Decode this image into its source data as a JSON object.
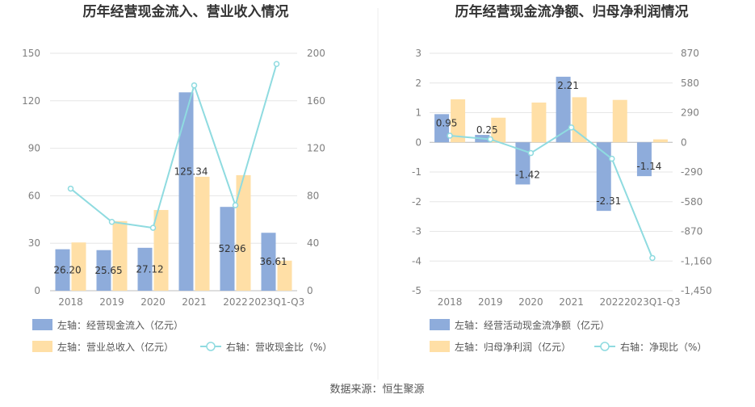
{
  "source_text": "数据来源：恒生聚源",
  "colors": {
    "blue_bar": "#8eacdb",
    "orange_bar": "#ffdfa6",
    "line": "#8fdbe0",
    "grid": "#e6e6e6",
    "axis": "#bdbdbd"
  },
  "chart_data": [
    {
      "type": "bar",
      "title": "历年经营现金流入、营业收入情况",
      "categories": [
        "2018",
        "2019",
        "2020",
        "2021",
        "2022",
        "2023Q1-Q3"
      ],
      "left_axis": {
        "ticks": [
          "0",
          "30",
          "60",
          "90",
          "120",
          "150"
        ],
        "ylim": [
          0,
          150
        ]
      },
      "right_axis": {
        "ticks": [
          "0",
          "40",
          "80",
          "120",
          "160",
          "200"
        ],
        "ylim": [
          0,
          200
        ]
      },
      "series": [
        {
          "name": "左轴：经营现金流入（亿元）",
          "axis": "left",
          "kind": "bar",
          "color": "#8eacdb",
          "values": [
            26.2,
            25.65,
            27.12,
            125.34,
            52.96,
            36.61
          ],
          "labels": [
            "26.20",
            "25.65",
            "27.12",
            "125.34",
            "52.96",
            "36.61"
          ]
        },
        {
          "name": "左轴：营业总收入（亿元）",
          "axis": "left",
          "kind": "bar",
          "color": "#ffdfa6",
          "values": [
            30.5,
            44,
            51,
            72,
            73,
            19
          ]
        },
        {
          "name": "右轴：营收现金比（%）",
          "axis": "right",
          "kind": "line",
          "color": "#8fdbe0",
          "values": [
            86,
            58,
            53,
            173,
            72,
            191
          ]
        }
      ],
      "grid": true,
      "legend": "bottom-left"
    },
    {
      "type": "bar",
      "title": "历年经营现金流净额、归母净利润情况",
      "categories": [
        "2018",
        "2019",
        "2020",
        "2021",
        "2022",
        "2023Q1-Q3"
      ],
      "left_axis": {
        "ticks": [
          "-5",
          "-4",
          "-3",
          "-2",
          "-1",
          "0",
          "1",
          "2",
          "3"
        ],
        "ylim": [
          -5,
          3
        ]
      },
      "right_axis": {
        "ticks": [
          "-1,450",
          "-1,160",
          "-870",
          "-580",
          "-290",
          "0",
          "290",
          "580",
          "870"
        ],
        "ylim": [
          -1450,
          870
        ]
      },
      "series": [
        {
          "name": "左轴：经营活动现金流净额（亿元）",
          "axis": "left",
          "kind": "bar",
          "color": "#8eacdb",
          "values": [
            0.95,
            0.25,
            -1.42,
            2.21,
            -2.31,
            -1.14
          ],
          "labels": [
            "0.95",
            "0.25",
            "-1.42",
            "2.21",
            "-2.31",
            "-1.14"
          ]
        },
        {
          "name": "左轴：归母净利润（亿元）",
          "axis": "left",
          "kind": "bar",
          "color": "#ffdfa6",
          "values": [
            1.45,
            0.83,
            1.34,
            1.52,
            1.43,
            0.1
          ]
        },
        {
          "name": "右轴：净现比（%）",
          "axis": "right",
          "kind": "line",
          "color": "#8fdbe0",
          "values": [
            65,
            30,
            -105,
            145,
            -160,
            -1130
          ]
        }
      ],
      "grid": true,
      "legend": "bottom-left"
    }
  ]
}
